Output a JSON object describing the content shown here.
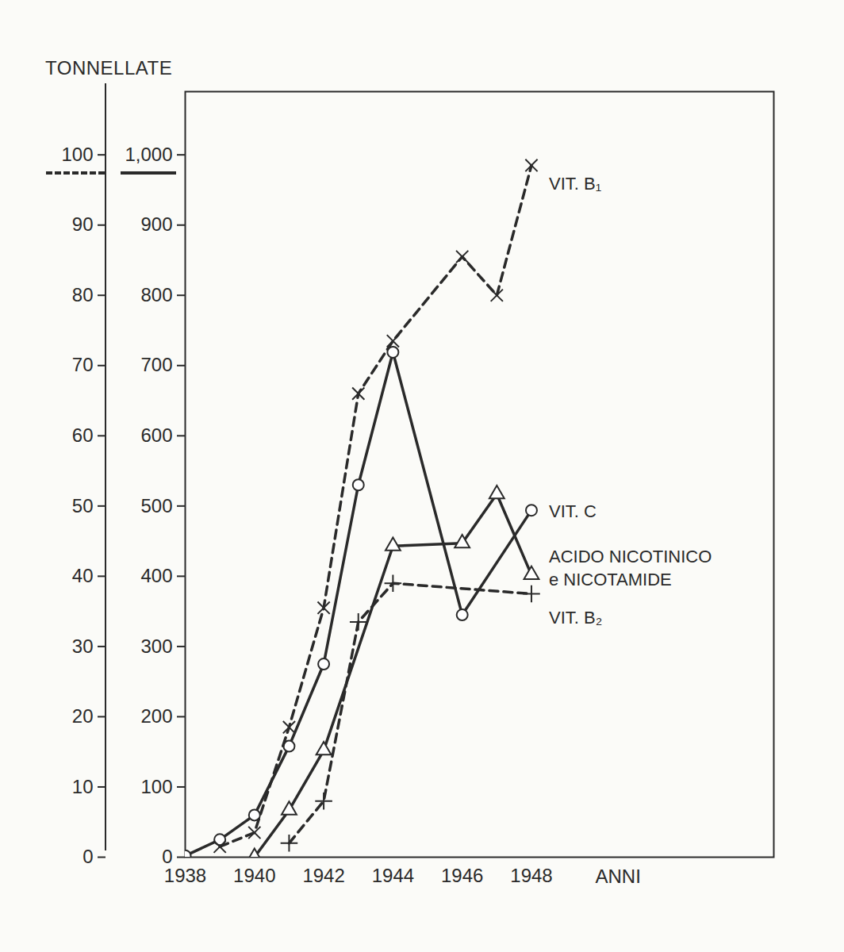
{
  "chart_data": {
    "type": "line",
    "y_label": "TONNELLATE",
    "x_label": "ANNI",
    "xlim": [
      1938,
      1955
    ],
    "xticks": [
      1938,
      1940,
      1942,
      1944,
      1946,
      1948
    ],
    "ylim": [
      0,
      109
    ],
    "yticks": [
      0,
      10,
      20,
      30,
      40,
      50,
      60,
      70,
      80,
      90,
      100
    ],
    "y2lim": [
      0,
      1090
    ],
    "y2ticks": [
      0,
      100,
      200,
      300,
      400,
      500,
      600,
      700,
      800,
      900,
      1000
    ],
    "series": [
      {
        "name": "VIT. B₁",
        "color": "#2a2a2a",
        "marker": "x",
        "line_style": "dashed",
        "axis": "y",
        "x": [
          1939,
          1940,
          1941,
          1942,
          1943,
          1944,
          1946,
          1947,
          1948
        ],
        "values": [
          1.5,
          3.5,
          18.5,
          35.5,
          66,
          73.5,
          85.5,
          80,
          98.5
        ]
      },
      {
        "name": "VIT. C",
        "color": "#2a2a2a",
        "marker": "circle",
        "line_style": "solid",
        "axis": "y2",
        "x": [
          1938,
          1939,
          1940,
          1941,
          1942,
          1943,
          1944,
          1946,
          1948
        ],
        "values": [
          2,
          25,
          60,
          158,
          275,
          530,
          719,
          345,
          494
        ]
      },
      {
        "name": "ACIDO NICOTINICO\ne NICOTAMIDE",
        "color": "#2a2a2a",
        "marker": "triangle",
        "line_style": "solid",
        "axis": "y2",
        "x": [
          1940,
          1941,
          1942,
          1944,
          1946,
          1947,
          1948
        ],
        "values": [
          0,
          67,
          152,
          443,
          447,
          517,
          402
        ]
      },
      {
        "name": "VIT. B₂",
        "color": "#2a2a2a",
        "marker": "plus",
        "line_style": "dashed",
        "axis": "y",
        "x": [
          1941,
          1942,
          1943,
          1944,
          1948
        ],
        "values": [
          2,
          8,
          33.5,
          39,
          37.5
        ]
      }
    ]
  }
}
